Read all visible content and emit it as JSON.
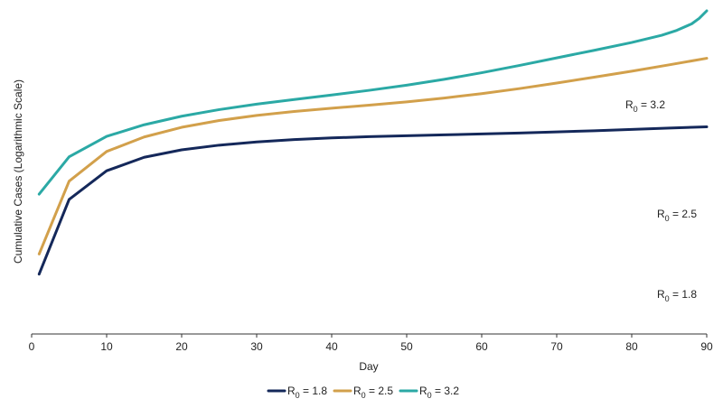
{
  "chart_data": {
    "type": "line",
    "title": "",
    "xlabel": "Day",
    "ylabel": "Cumulative Cases (Logarithmic Scale)",
    "y_scale": "log",
    "y_tick_labels": false,
    "xlim": [
      0,
      90
    ],
    "x_ticks": [
      0,
      10,
      20,
      30,
      40,
      50,
      60,
      70,
      80,
      90
    ],
    "grid": false,
    "legend_position": "bottom-center",
    "series": [
      {
        "name": "R0 = 1.8",
        "label_base": "R",
        "label_sub": "0",
        "label_rest": " = 1.8",
        "color": "#14285a",
        "x": [
          1,
          5,
          10,
          15,
          20,
          25,
          30,
          35,
          40,
          45,
          50,
          55,
          60,
          65,
          70,
          75,
          80,
          85,
          90
        ],
        "y": [
          1,
          4.5,
          8,
          10.5,
          12.2,
          13.4,
          14.3,
          15,
          15.5,
          15.9,
          16.2,
          16.5,
          16.8,
          17.1,
          17.5,
          17.9,
          18.4,
          18.9,
          19.4
        ]
      },
      {
        "name": "R0 = 2.5",
        "label_base": "R",
        "label_sub": "0",
        "label_rest": " = 2.5",
        "color": "#d2a04b",
        "x": [
          1,
          5,
          10,
          15,
          20,
          25,
          30,
          35,
          40,
          45,
          50,
          55,
          60,
          65,
          70,
          75,
          80,
          85,
          90
        ],
        "y": [
          1.5,
          6.5,
          11.8,
          15.8,
          19.2,
          22,
          24.4,
          26.4,
          28.2,
          30,
          32,
          34.6,
          37.8,
          41.8,
          46.8,
          52.6,
          59.4,
          67.5,
          77
        ]
      },
      {
        "name": "R0 = 3.2",
        "label_base": "R",
        "label_sub": "0",
        "label_rest": " = 3.2",
        "color": "#2ba9a5",
        "x": [
          1,
          5,
          10,
          15,
          20,
          25,
          30,
          35,
          40,
          45,
          50,
          55,
          60,
          65,
          70,
          75,
          80,
          84,
          86,
          88,
          89,
          90
        ],
        "y": [
          5,
          10.6,
          16,
          20.2,
          24,
          27.4,
          30.6,
          33.6,
          36.8,
          40.4,
          44.8,
          50.4,
          57.6,
          66.6,
          77.6,
          90.4,
          105.8,
          122.4,
          135,
          154,
          172,
          200
        ]
      }
    ]
  }
}
